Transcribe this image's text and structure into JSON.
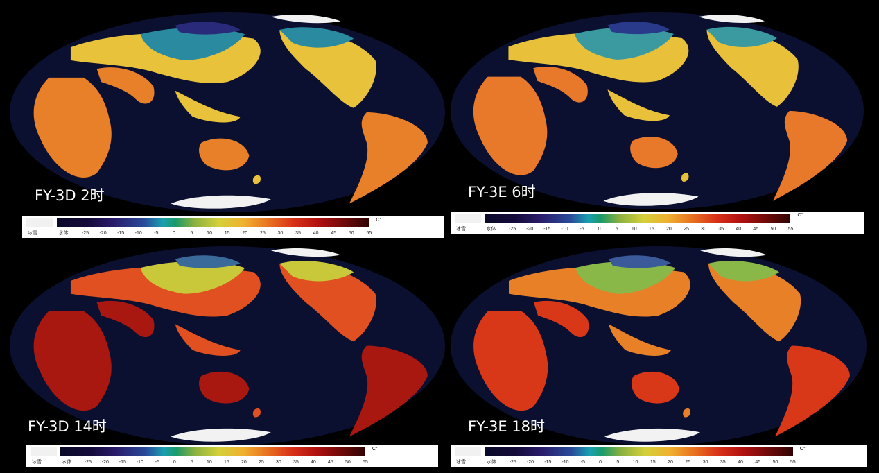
{
  "panels": [
    {
      "label": "FY-3D 2时",
      "palette": "night"
    },
    {
      "label": "FY-3E 6时",
      "palette": "morning"
    },
    {
      "label": "FY-3D 14时",
      "palette": "afternoon"
    },
    {
      "label": "FY-3E 18时",
      "palette": "evening"
    }
  ],
  "colorbar": {
    "ice_label": "冰雪",
    "water_label": "水体",
    "unit": "C°",
    "ticks": [
      "-25",
      "-20",
      "-15",
      "-10",
      "-5",
      "0",
      "5",
      "10",
      "15",
      "20",
      "25",
      "30",
      "35",
      "40",
      "45",
      "50",
      "55"
    ]
  },
  "colors": {
    "ocean": "#0b1030",
    "ice": "#f2f2f2"
  }
}
